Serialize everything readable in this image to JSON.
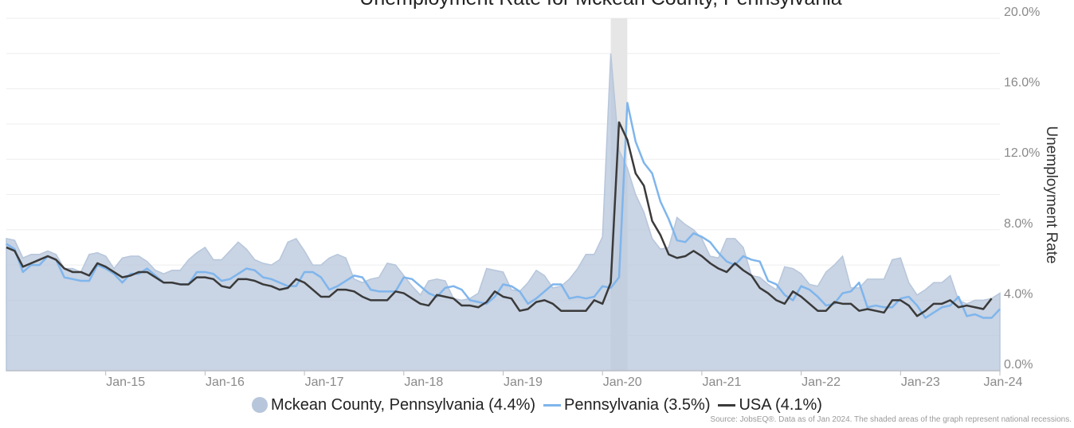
{
  "chart_data": {
    "type": "line",
    "title": "Unemployment Rate for Mckean County, Pennsylvania",
    "ylabel": "Unemployment Rate",
    "ylim": [
      0,
      20
    ],
    "yticks": [
      "0.0%",
      "4.0%",
      "8.0%",
      "12.0%",
      "16.0%",
      "20.0%"
    ],
    "ytick_values": [
      0,
      4,
      8,
      12,
      16,
      20
    ],
    "x_start": "2014-01",
    "x_end": "2024-01",
    "xticks": [
      {
        "label": "Jan-15",
        "date": "2015-01"
      },
      {
        "label": "Jan-16",
        "date": "2016-01"
      },
      {
        "label": "Jan-17",
        "date": "2017-01"
      },
      {
        "label": "Jan-18",
        "date": "2018-01"
      },
      {
        "label": "Jan-19",
        "date": "2019-01"
      },
      {
        "label": "Jan-20",
        "date": "2020-01"
      },
      {
        "label": "Jan-21",
        "date": "2021-01"
      },
      {
        "label": "Jan-22",
        "date": "2022-01"
      },
      {
        "label": "Jan-23",
        "date": "2023-01"
      },
      {
        "label": "Jan-24",
        "date": "2024-01"
      }
    ],
    "recession": {
      "start": "2020-02",
      "end": "2020-04"
    },
    "grid": "horizontal",
    "legend_position": "bottom",
    "series": [
      {
        "name": "Mckean County, Pennsylvania (4.4%)",
        "style": "area",
        "color": "#b7c6db",
        "values": [
          7.5,
          7.4,
          6.4,
          6.6,
          6.6,
          6.8,
          6.6,
          5.8,
          5.8,
          5.6,
          6.6,
          6.7,
          6.5,
          5.8,
          6.4,
          6.5,
          6.5,
          6.2,
          5.7,
          5.5,
          5.7,
          5.7,
          6.3,
          6.7,
          7.0,
          6.3,
          6.3,
          6.8,
          7.3,
          6.9,
          6.3,
          6.1,
          6.0,
          6.3,
          7.3,
          7.5,
          6.8,
          6.0,
          6.0,
          6.4,
          6.6,
          6.4,
          5.2,
          5.0,
          5.2,
          5.3,
          6.1,
          6.0,
          5.4,
          4.8,
          4.3,
          5.1,
          5.2,
          5.1,
          4.1,
          4.0,
          4.1,
          4.4,
          5.8,
          5.7,
          5.6,
          4.6,
          4.5,
          5.0,
          5.7,
          5.4,
          4.7,
          4.8,
          5.2,
          5.8,
          6.6,
          6.6,
          7.6,
          18.0,
          12.5,
          11.5,
          10.0,
          9.0,
          7.5,
          6.9,
          7.0,
          8.7,
          8.3,
          8.0,
          7.5,
          6.5,
          6.4,
          7.5,
          7.5,
          7.0,
          5.4,
          5.3,
          4.9,
          4.6,
          5.9,
          5.8,
          5.5,
          4.9,
          4.8,
          5.6,
          6.0,
          6.5,
          4.7,
          4.7,
          5.2,
          5.2,
          5.2,
          6.3,
          6.4,
          5.0,
          4.3,
          4.6,
          5.0,
          5.0,
          5.4,
          4.0,
          3.8,
          4.0,
          4.0,
          4.1,
          4.4
        ]
      },
      {
        "name": "Pennsylvania (3.5%)",
        "style": "line",
        "color": "#7fb5ec",
        "values": [
          7.2,
          6.9,
          5.6,
          6.0,
          6.0,
          6.5,
          6.3,
          5.3,
          5.2,
          5.1,
          5.1,
          6.0,
          5.8,
          5.5,
          5.0,
          5.5,
          5.5,
          5.8,
          5.4,
          5.0,
          5.0,
          4.9,
          4.9,
          5.6,
          5.6,
          5.5,
          5.1,
          5.2,
          5.5,
          5.8,
          5.7,
          5.3,
          5.2,
          5.0,
          4.8,
          4.8,
          5.6,
          5.6,
          5.3,
          4.6,
          4.8,
          5.1,
          5.4,
          5.3,
          4.6,
          4.5,
          4.5,
          4.5,
          5.3,
          5.2,
          4.8,
          4.4,
          4.2,
          4.7,
          4.8,
          4.6,
          4.0,
          3.9,
          3.8,
          4.2,
          4.9,
          4.8,
          4.5,
          3.8,
          4.1,
          4.5,
          4.9,
          4.9,
          4.1,
          4.2,
          4.1,
          4.2,
          4.8,
          4.7,
          5.3,
          15.2,
          13.0,
          11.8,
          11.2,
          9.6,
          8.6,
          7.4,
          7.3,
          7.8,
          7.6,
          7.3,
          6.7,
          6.2,
          6.0,
          6.5,
          6.3,
          6.2,
          5.1,
          4.9,
          4.3,
          4.0,
          4.8,
          4.6,
          4.2,
          3.7,
          3.8,
          4.4,
          4.5,
          5.0,
          3.6,
          3.7,
          3.6,
          3.6,
          4.1,
          4.2,
          3.7,
          3.0,
          3.3,
          3.6,
          3.7,
          4.2,
          3.1,
          3.2,
          3.0,
          3.0,
          3.5
        ]
      },
      {
        "name": "USA (4.1%)",
        "style": "line",
        "color": "#3a3a3a",
        "values": [
          7.0,
          6.8,
          5.9,
          6.1,
          6.3,
          6.5,
          6.3,
          5.8,
          5.6,
          5.6,
          5.4,
          6.1,
          5.9,
          5.6,
          5.3,
          5.4,
          5.6,
          5.6,
          5.3,
          5.0,
          5.0,
          4.9,
          4.9,
          5.3,
          5.3,
          5.2,
          4.8,
          4.7,
          5.2,
          5.2,
          5.1,
          4.9,
          4.8,
          4.6,
          4.7,
          5.2,
          5.0,
          4.6,
          4.2,
          4.2,
          4.6,
          4.6,
          4.5,
          4.2,
          4.0,
          4.0,
          4.0,
          4.5,
          4.4,
          4.1,
          3.8,
          3.7,
          4.3,
          4.2,
          4.1,
          3.7,
          3.7,
          3.6,
          3.9,
          4.5,
          4.2,
          4.1,
          3.4,
          3.5,
          3.9,
          4.0,
          3.8,
          3.4,
          3.4,
          3.4,
          3.4,
          4.0,
          3.8,
          5.0,
          14.1,
          13.1,
          11.2,
          10.5,
          8.5,
          7.7,
          6.6,
          6.4,
          6.5,
          6.8,
          6.5,
          6.1,
          5.8,
          5.6,
          6.1,
          5.7,
          5.4,
          4.7,
          4.4,
          4.0,
          3.8,
          4.5,
          4.2,
          3.8,
          3.4,
          3.4,
          3.9,
          3.8,
          3.8,
          3.4,
          3.5,
          3.4,
          3.3,
          4.0,
          4.0,
          3.7,
          3.1,
          3.4,
          3.8,
          3.8,
          4.0,
          3.6,
          3.7,
          3.6,
          3.5,
          4.1
        ]
      }
    ],
    "source": "Source: JobsEQ®. Data as of Jan 2024. The shaded areas of the graph represent national recessions."
  },
  "legend": [
    {
      "label": "Mckean County, Pennsylvania (4.4%)",
      "color": "#b7c6db",
      "shape": "dot"
    },
    {
      "label": "Pennsylvania (3.5%)",
      "color": "#7fb5ec",
      "shape": "line"
    },
    {
      "label": "USA (4.1%)",
      "color": "#3a3a3a",
      "shape": "line"
    }
  ]
}
